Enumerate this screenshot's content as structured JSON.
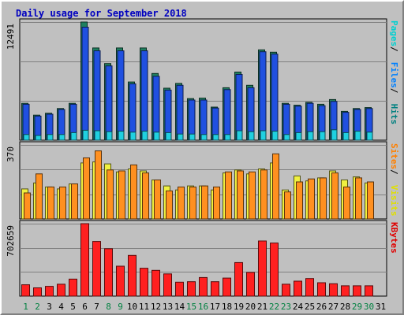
{
  "chart_data": {
    "type": "bar",
    "title": "Daily usage for September 2018",
    "categories": [
      "1",
      "2",
      "3",
      "4",
      "5",
      "6",
      "7",
      "8",
      "9",
      "10",
      "11",
      "12",
      "13",
      "14",
      "15",
      "16",
      "17",
      "18",
      "19",
      "20",
      "21",
      "22",
      "23",
      "24",
      "25",
      "26",
      "27",
      "28",
      "29",
      "30",
      "31"
    ],
    "weekend_days": [
      "1",
      "2",
      "8",
      "9",
      "15",
      "16",
      "22",
      "23",
      "29",
      "30"
    ],
    "panels": [
      {
        "id": "hits-files-pages",
        "max_label": "12491",
        "ymax": 12491,
        "side_labels": [
          "Pages",
          "Files",
          "Hits"
        ],
        "side_colors": [
          "#00d0d0",
          "#0080ff",
          "#008080"
        ],
        "series": [
          {
            "name": "Hits",
            "color": "#208060",
            "values": [
              3900,
              2650,
              2850,
              3350,
              3900,
              12491,
              9750,
              8100,
              9750,
              6150,
              9750,
              7050,
              5500,
              6000,
              4400,
              4450,
              3500,
              5550,
              7200,
              5800,
              9550,
              9300,
              3900,
              3700,
              4000,
              3800,
              4300,
              3050,
              3350,
              3450,
              null
            ]
          },
          {
            "name": "Files",
            "color": "#2050e0",
            "values": [
              3800,
              2550,
              2750,
              3250,
              3800,
              11950,
              9450,
              7850,
              9450,
              5950,
              9450,
              6750,
              5300,
              5800,
              4250,
              4250,
              3400,
              5350,
              6950,
              5550,
              9350,
              9100,
              3800,
              3600,
              3900,
              3650,
              4100,
              2950,
              3250,
              3350,
              null
            ]
          },
          {
            "name": "Pages",
            "color": "#20d0e0",
            "values": [
              600,
              500,
              600,
              600,
              800,
              1050,
              1000,
              900,
              950,
              850,
              950,
              850,
              800,
              650,
              650,
              600,
              600,
              600,
              1000,
              900,
              1000,
              950,
              600,
              800,
              900,
              900,
              1100,
              800,
              950,
              850,
              null
            ]
          }
        ]
      },
      {
        "id": "visits-sites",
        "max_label": "370",
        "ymax": 370,
        "side_labels": [
          "Sites",
          "Visits"
        ],
        "side_colors": [
          "#ff8000",
          "#e0e000"
        ],
        "series": [
          {
            "name": "Visits",
            "color": "#f0f040",
            "values": [
              150,
              180,
              160,
              150,
              175,
              280,
              285,
              275,
              235,
              250,
              240,
              195,
              165,
              145,
              165,
              165,
              145,
              230,
              245,
              225,
              250,
              280,
              145,
              215,
              190,
              205,
              240,
              195,
              210,
              180,
              null
            ]
          },
          {
            "name": "Sites",
            "color": "#ff9020",
            "values": [
              130,
              225,
              160,
              160,
              175,
              305,
              340,
              245,
              240,
              270,
              230,
              195,
              140,
              160,
              160,
              165,
              160,
              235,
              240,
              235,
              245,
              325,
              135,
              185,
              200,
              205,
              230,
              160,
              205,
              185,
              null
            ]
          }
        ]
      },
      {
        "id": "kbytes",
        "max_label": "702659",
        "ymax": 702659,
        "side_labels": [
          "KBytes"
        ],
        "side_colors": [
          "#e00000"
        ],
        "series": [
          {
            "name": "KBytes",
            "color": "#ff2020",
            "values": [
              110000,
              80000,
              95000,
              115000,
              165000,
              702659,
              530000,
              460000,
              290000,
              395000,
              270000,
              250000,
              215000,
              135000,
              140000,
              180000,
              140000,
              175000,
              325000,
              230000,
              535000,
              515000,
              115000,
              145000,
              170000,
              130000,
              120000,
              100000,
              100000,
              100000,
              null
            ]
          }
        ]
      }
    ]
  }
}
